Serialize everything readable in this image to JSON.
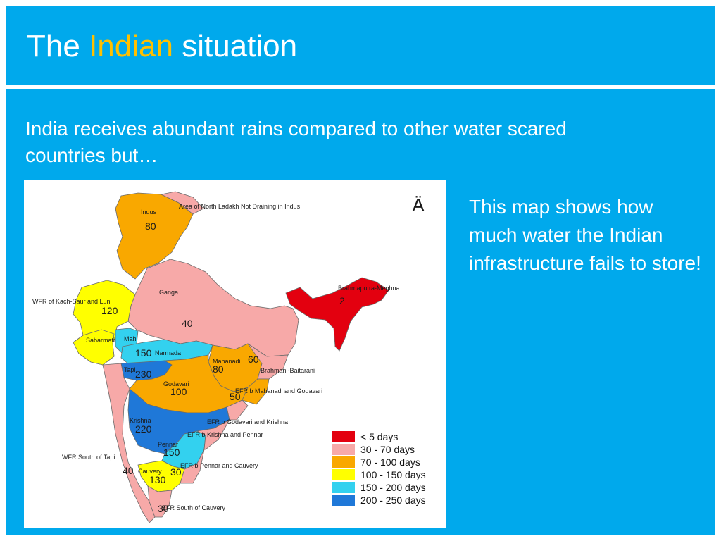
{
  "slide": {
    "title_pre": "The",
    "title_highlight": "Indian",
    "title_post": "situation",
    "intro": "India receives abundant rains compared to other water scared countries but…",
    "side_note": "This map shows how much water the Indian infrastructure fails to store!"
  },
  "map": {
    "north_arrow": "Ä",
    "regions": {
      "indus": {
        "name": "Indus",
        "value": "80",
        "color": "#f9a800"
      },
      "north_ladakh": {
        "name": "Area of North Ladakh Not Draining in Indus"
      },
      "kach": {
        "name": "WFR of Kach-Saur and Luni",
        "value": "120",
        "color": "#ffff00"
      },
      "ganga": {
        "name": "Ganga",
        "value": "40",
        "color": "#f7a9a8"
      },
      "brahmaputra": {
        "name": "Brahmaputra-Meghna",
        "value": "2",
        "color": "#e3000f"
      },
      "sabarmati": {
        "name": "Sabarmati"
      },
      "mahi": {
        "name": "Mahi"
      },
      "narmada": {
        "name": "Narmada",
        "value": "150",
        "color": "#33d1ef"
      },
      "tapi": {
        "name": "Tapi",
        "value": "230",
        "color": "#1f78d8"
      },
      "mahanadi": {
        "name": "Mahanadi",
        "value": "80",
        "color": "#f9a800"
      },
      "mahanadi_extra": {
        "value": "60"
      },
      "brahmani": {
        "name": "Brahmani-Baitarani"
      },
      "godavari": {
        "name": "Godavari",
        "value": "100",
        "color": "#f9a800"
      },
      "efr_mahanadi_godavari": {
        "name": "EFR b Mahanadi and Godavari",
        "value": "50"
      },
      "efr_godavari_krishna": {
        "name": "EFR b Godavari and Krishna"
      },
      "krishna": {
        "name": "Krishna",
        "value": "220",
        "color": "#1f78d8"
      },
      "efr_krishna_pennar": {
        "name": "EFR b Krishna and Pennar"
      },
      "pennar": {
        "name": "Pennar",
        "value": "150",
        "color": "#33d1ef"
      },
      "wfr_south_tapi": {
        "name": "WFR South of Tapi",
        "value": "40",
        "color": "#f7a9a8"
      },
      "cauvery": {
        "name": "Cauvery",
        "value": "130",
        "color": "#ffff00"
      },
      "efr_pennar_cauvery": {
        "name": "EFR b Pennar and Cauvery",
        "value": "30"
      },
      "efr_south_cauvery": {
        "name": "EFR South of Cauvery",
        "value": "30"
      }
    },
    "legend": [
      {
        "label": "< 5 days",
        "color": "#e3000f"
      },
      {
        "label": "30 - 70 days",
        "color": "#f7a9a8"
      },
      {
        "label": "70 - 100 days",
        "color": "#f9a800"
      },
      {
        "label": "100 - 150 days",
        "color": "#ffff00"
      },
      {
        "label": "150 - 200 days",
        "color": "#33d1ef"
      },
      {
        "label": "200 - 250 days",
        "color": "#1f78d8"
      }
    ]
  },
  "colors": {
    "header_bg": "#00a9ec",
    "highlight": "#ffc000",
    "text": "#ffffff"
  }
}
